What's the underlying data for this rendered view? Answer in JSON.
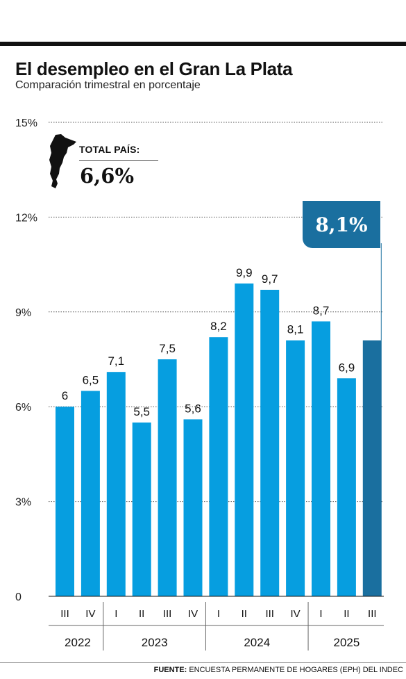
{
  "header": {
    "title": "El desempleo en el Gran La Plata",
    "subtitle": "Comparación trimestral en porcentaje"
  },
  "callout": {
    "label": "TOTAL PAÍS:",
    "value": "6,6%",
    "map_icon": "argentina-map-icon"
  },
  "highlight": {
    "label": "8,1%"
  },
  "source": {
    "prefix": "FUENTE:",
    "text": "ENCUESTA PERMANENTE DE HOGARES (EPH) DEL INDEC"
  },
  "colors": {
    "bar": "#069ee0",
    "bar_highlight": "#1a6f9f",
    "text": "#111111"
  },
  "chart_data": {
    "type": "bar",
    "title": "El desempleo en el Gran La Plata",
    "subtitle": "Comparación trimestral en porcentaje",
    "ylim": [
      0,
      15
    ],
    "yticks": [
      0,
      3,
      6,
      9,
      12,
      15
    ],
    "ytick_labels": [
      "0",
      "3%",
      "6%",
      "9%",
      "12%",
      "15%"
    ],
    "grid": true,
    "categories": [
      "III",
      "IV",
      "I",
      "II",
      "III",
      "IV",
      "I",
      "II",
      "III",
      "IV",
      "I",
      "II",
      "III"
    ],
    "years": [
      {
        "label": "2022",
        "span": 2
      },
      {
        "label": "2023",
        "span": 4
      },
      {
        "label": "2024",
        "span": 4
      },
      {
        "label": "2025",
        "span": 3
      }
    ],
    "values": [
      6,
      6.5,
      7.1,
      5.5,
      7.5,
      5.6,
      8.2,
      9.9,
      9.7,
      8.1,
      8.7,
      6.9,
      8.1
    ],
    "value_labels": [
      "6",
      "6,5",
      "7,1",
      "5,5",
      "7,5",
      "5,6",
      "8,2",
      "9,9",
      "9,7",
      "8,1",
      "8,7",
      "6,9",
      ""
    ],
    "highlight_index": 12
  }
}
